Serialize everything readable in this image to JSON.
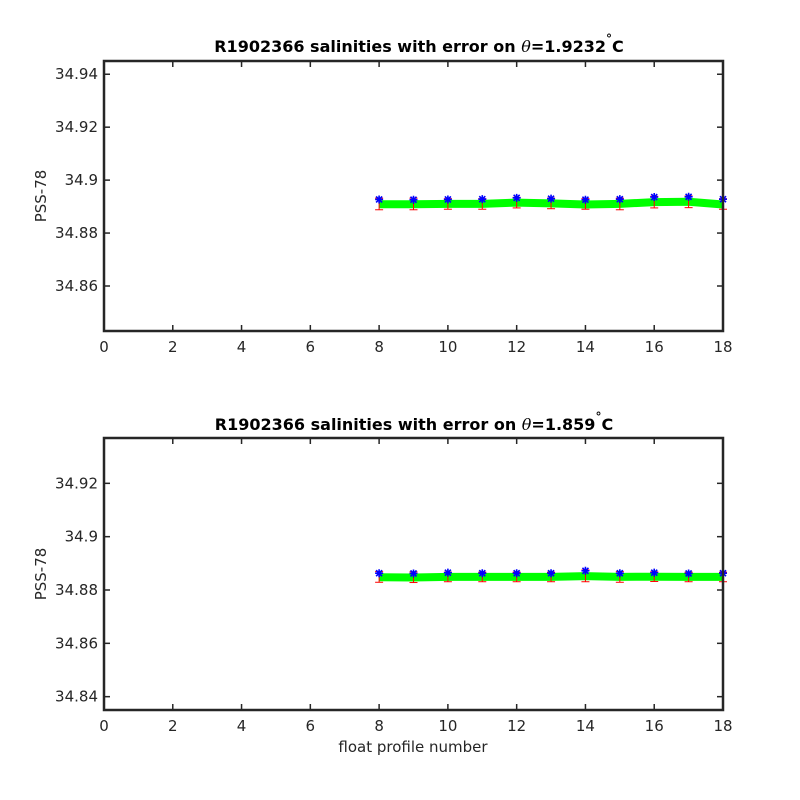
{
  "chart_data": [
    {
      "type": "scatter",
      "title_prefix": "R1902366 salinities with error on ",
      "title_theta": "θ",
      "title_value": "=1.9232",
      "title_degree": "°",
      "title_unit": "C",
      "xlabel": "",
      "ylabel": "PSS-78",
      "xlim": [
        0,
        18
      ],
      "ylim": [
        34.843,
        34.945
      ],
      "x_ticks": [
        0,
        2,
        4,
        6,
        8,
        10,
        12,
        14,
        16,
        18
      ],
      "y_ticks": [
        34.86,
        34.88,
        34.9,
        34.92,
        34.94
      ],
      "y_tick_labels": [
        "34.86",
        "34.88",
        "34.9",
        "34.92",
        "34.94"
      ],
      "x": [
        8,
        9,
        10,
        11,
        12,
        13,
        14,
        15,
        16,
        17,
        18
      ],
      "series": [
        {
          "style": "green-thick-line",
          "color": "#00ff00",
          "values": [
            34.8909,
            34.8909,
            34.891,
            34.891,
            34.8915,
            34.8912,
            34.8908,
            34.891,
            34.8917,
            34.8918,
            34.8908
          ]
        },
        {
          "style": "blue-star-markers",
          "color": "#0000ff",
          "values": [
            34.8927,
            34.8926,
            34.8927,
            34.8928,
            34.8933,
            34.893,
            34.8926,
            34.8928,
            34.8936,
            34.8937,
            34.8928
          ]
        },
        {
          "style": "red-errorbars",
          "color": "#ff0000",
          "values": [
            34.891,
            34.891,
            34.891,
            34.891,
            34.8915,
            34.8912,
            34.891,
            34.891,
            34.8917,
            34.8918,
            34.891
          ],
          "error": [
            0.0022,
            0.0022,
            0.002,
            0.002,
            0.002,
            0.002,
            0.002,
            0.0022,
            0.0022,
            0.0022,
            0.002
          ]
        }
      ]
    },
    {
      "type": "scatter",
      "title_prefix": "R1902366 salinities with error on ",
      "title_theta": "θ",
      "title_value": "=1.859",
      "title_degree": "°",
      "title_unit": "C",
      "xlabel": "float profile number",
      "ylabel": "PSS-78",
      "xlim": [
        0,
        18
      ],
      "ylim": [
        34.835,
        34.937
      ],
      "x_ticks": [
        0,
        2,
        4,
        6,
        8,
        10,
        12,
        14,
        16,
        18
      ],
      "y_ticks": [
        34.84,
        34.86,
        34.88,
        34.9,
        34.92
      ],
      "y_tick_labels": [
        "34.84",
        "34.86",
        "34.88",
        "34.9",
        "34.92"
      ],
      "x": [
        8,
        9,
        10,
        11,
        12,
        13,
        14,
        15,
        16,
        17,
        18
      ],
      "series": [
        {
          "style": "green-thick-line",
          "color": "#00ff00",
          "values": [
            34.8848,
            34.8847,
            34.8849,
            34.8849,
            34.8849,
            34.8849,
            34.8852,
            34.8849,
            34.885,
            34.8849,
            34.8849
          ]
        },
        {
          "style": "blue-star-markers",
          "color": "#0000ff",
          "values": [
            34.8863,
            34.8862,
            34.8865,
            34.8863,
            34.8863,
            34.8863,
            34.8872,
            34.8863,
            34.8865,
            34.8862,
            34.8863
          ]
        },
        {
          "style": "red-errorbars",
          "color": "#ff0000",
          "values": [
            34.8849,
            34.8848,
            34.8849,
            34.8849,
            34.8849,
            34.8849,
            34.8853,
            34.8849,
            34.885,
            34.8849,
            34.8849
          ],
          "error": [
            0.002,
            0.002,
            0.0018,
            0.0018,
            0.0018,
            0.0018,
            0.0022,
            0.002,
            0.0018,
            0.0018,
            0.0018
          ]
        }
      ]
    }
  ]
}
